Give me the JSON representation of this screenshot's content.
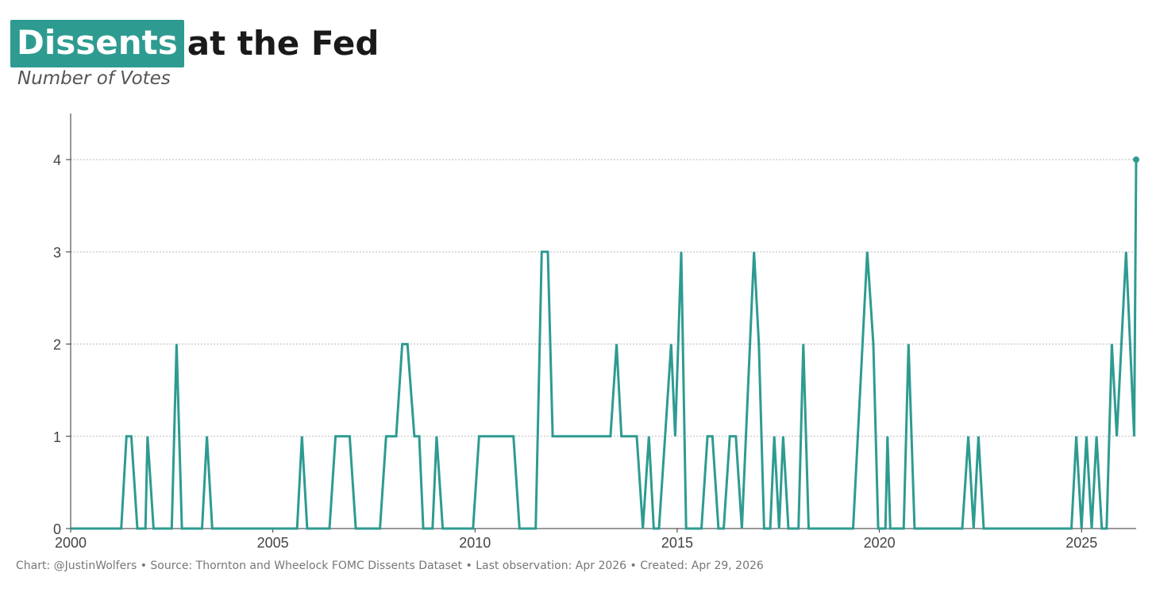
{
  "title": {
    "highlight": "Dissents",
    "rest": "at the Fed"
  },
  "subtitle": "Number of Votes",
  "footer": "Chart: @JustinWolfers • Source: Thornton and Wheelock FOMC Dissents Dataset • Last observation: Apr 2026 • Created: Apr 29, 2026",
  "colors": {
    "accent": "#2e9b91",
    "grid": "#bbbbbb",
    "axis": "#333333",
    "tick_text": "#444444"
  },
  "chart_data": {
    "type": "line",
    "title": "Dissents at the Fed",
    "xlabel": "",
    "ylabel": "Number of Votes",
    "xlim": [
      2000,
      2026.35
    ],
    "ylim": [
      0,
      4.5
    ],
    "x_ticks": [
      2000,
      2005,
      2010,
      2015,
      2020,
      2025
    ],
    "y_ticks": [
      0,
      1,
      2,
      3,
      4
    ],
    "grid": "horizontal dotted",
    "legend": "none",
    "series": [
      {
        "values": [
          [
            2000.0,
            0
          ],
          [
            2001.25,
            0
          ],
          [
            2001.38,
            1
          ],
          [
            2001.5,
            1
          ],
          [
            2001.65,
            0
          ],
          [
            2001.85,
            0
          ],
          [
            2001.9,
            1
          ],
          [
            2002.05,
            0
          ],
          [
            2002.5,
            0
          ],
          [
            2002.62,
            2
          ],
          [
            2002.75,
            0
          ],
          [
            2003.25,
            0
          ],
          [
            2003.37,
            1
          ],
          [
            2003.5,
            0
          ],
          [
            2005.6,
            0
          ],
          [
            2005.72,
            1
          ],
          [
            2005.85,
            0
          ],
          [
            2006.4,
            0
          ],
          [
            2006.55,
            1
          ],
          [
            2006.9,
            1
          ],
          [
            2007.05,
            0
          ],
          [
            2007.65,
            0
          ],
          [
            2007.8,
            1
          ],
          [
            2008.05,
            1
          ],
          [
            2008.2,
            2
          ],
          [
            2008.33,
            2
          ],
          [
            2008.5,
            1
          ],
          [
            2008.62,
            1
          ],
          [
            2008.72,
            0
          ],
          [
            2008.95,
            0
          ],
          [
            2009.05,
            1
          ],
          [
            2009.2,
            0
          ],
          [
            2009.95,
            0
          ],
          [
            2010.1,
            1
          ],
          [
            2010.95,
            1
          ],
          [
            2011.1,
            0
          ],
          [
            2011.5,
            0
          ],
          [
            2011.65,
            3
          ],
          [
            2011.8,
            3
          ],
          [
            2011.92,
            1
          ],
          [
            2013.35,
            1
          ],
          [
            2013.5,
            2
          ],
          [
            2013.62,
            1
          ],
          [
            2014.0,
            1
          ],
          [
            2014.15,
            0
          ],
          [
            2014.3,
            1
          ],
          [
            2014.42,
            0
          ],
          [
            2014.55,
            0
          ],
          [
            2014.7,
            1
          ],
          [
            2014.85,
            2
          ],
          [
            2014.95,
            1
          ],
          [
            2015.1,
            3
          ],
          [
            2015.22,
            0
          ],
          [
            2015.6,
            0
          ],
          [
            2015.75,
            1
          ],
          [
            2015.87,
            1
          ],
          [
            2016.02,
            0
          ],
          [
            2016.15,
            0
          ],
          [
            2016.3,
            1
          ],
          [
            2016.45,
            1
          ],
          [
            2016.6,
            0
          ],
          [
            2016.9,
            3
          ],
          [
            2017.02,
            2
          ],
          [
            2017.15,
            0
          ],
          [
            2017.3,
            0
          ],
          [
            2017.4,
            1
          ],
          [
            2017.52,
            0
          ],
          [
            2017.62,
            1
          ],
          [
            2017.75,
            0
          ],
          [
            2018.0,
            0
          ],
          [
            2018.12,
            2
          ],
          [
            2018.25,
            0
          ],
          [
            2019.35,
            0
          ],
          [
            2019.7,
            3
          ],
          [
            2019.85,
            2
          ],
          [
            2019.97,
            0
          ],
          [
            2020.15,
            0
          ],
          [
            2020.2,
            1
          ],
          [
            2020.27,
            0
          ],
          [
            2020.6,
            0
          ],
          [
            2020.72,
            2
          ],
          [
            2020.87,
            0
          ],
          [
            2022.05,
            0
          ],
          [
            2022.2,
            1
          ],
          [
            2022.33,
            0
          ],
          [
            2022.45,
            1
          ],
          [
            2022.58,
            0
          ],
          [
            2024.75,
            0
          ],
          [
            2024.87,
            1
          ],
          [
            2025.0,
            0
          ],
          [
            2025.12,
            1
          ],
          [
            2025.25,
            0
          ],
          [
            2025.37,
            1
          ],
          [
            2025.5,
            0
          ],
          [
            2025.62,
            0
          ],
          [
            2025.75,
            2
          ],
          [
            2025.87,
            1
          ],
          [
            2026.1,
            3
          ],
          [
            2026.3,
            1
          ],
          [
            2026.35,
            4
          ]
        ]
      }
    ]
  }
}
